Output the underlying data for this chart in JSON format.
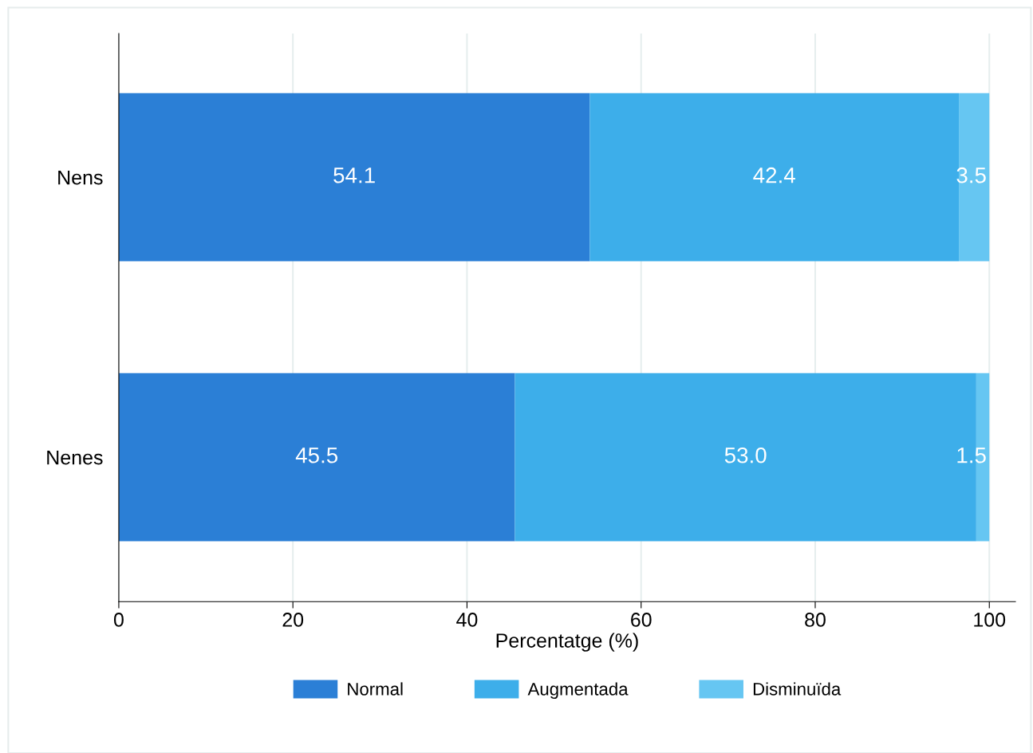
{
  "chart_data": {
    "type": "bar",
    "orientation": "horizontal",
    "stacked": true,
    "categories": [
      "Nens",
      "Nenes"
    ],
    "series": [
      {
        "name": "Normal",
        "color": "#2b7fd6",
        "values": [
          54.1,
          45.5
        ],
        "value_labels": [
          "54.1",
          "45.5"
        ]
      },
      {
        "name": "Augmentada",
        "color": "#3daeea",
        "values": [
          42.4,
          53.0
        ],
        "value_labels": [
          "42.4",
          "53.0"
        ]
      },
      {
        "name": "Disminuïda",
        "color": "#66c6f2",
        "values": [
          3.5,
          1.5
        ],
        "value_labels": [
          "3.5",
          "1.5"
        ]
      }
    ],
    "xlabel": "Percentatge (%)",
    "xlim": [
      0,
      103
    ],
    "xticks": [
      0,
      20,
      40,
      60,
      80,
      100
    ],
    "grid": "x",
    "legend": "bottom"
  }
}
